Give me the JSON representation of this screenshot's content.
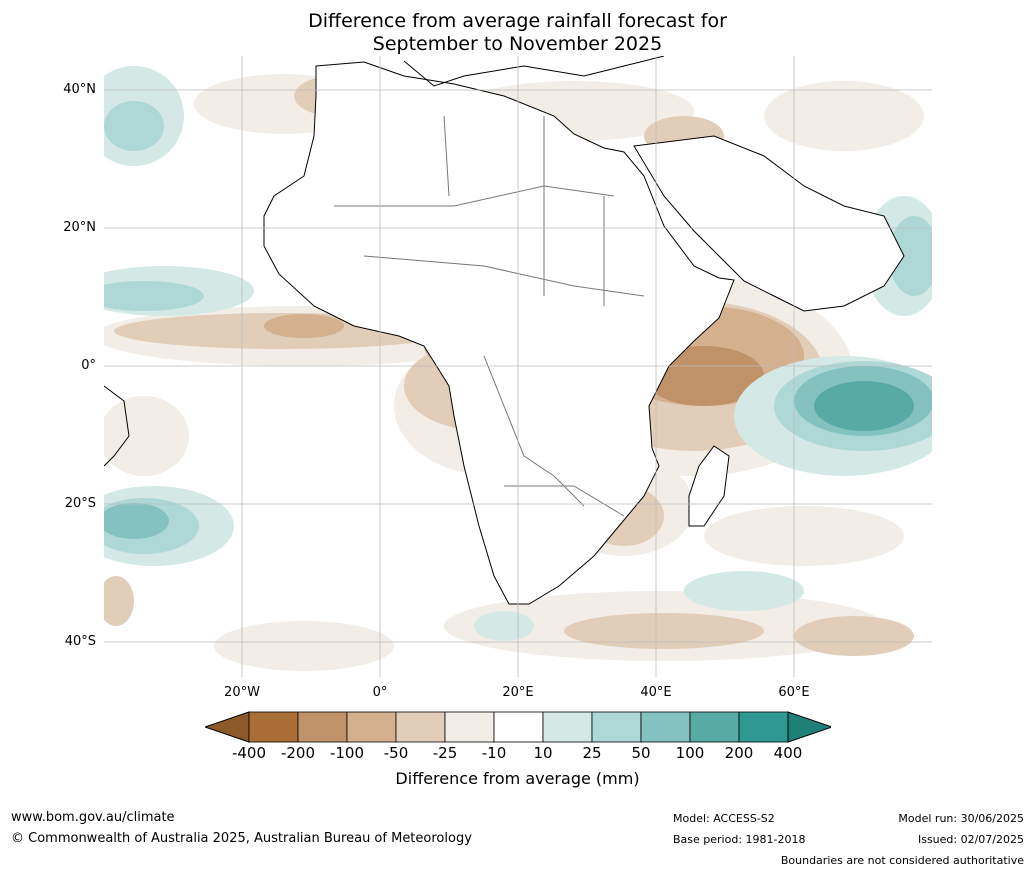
{
  "title": {
    "line1": "Difference from average rainfall forecast for",
    "line2": "September to November 2025"
  },
  "axes": {
    "lat_labels": [
      "40°N",
      "20°N",
      "0°",
      "20°S",
      "40°S"
    ],
    "lon_labels": [
      "20°W",
      "0°",
      "20°E",
      "40°E",
      "60°E"
    ]
  },
  "legend": {
    "title": "Difference from average (mm)",
    "ticks": [
      "-400",
      "-200",
      "-100",
      "-50",
      "-25",
      "-10",
      "10",
      "25",
      "50",
      "100",
      "200",
      "400"
    ],
    "colors": [
      "#a86e36",
      "#c0926a",
      "#d4b08f",
      "#e2cdb9",
      "#f2ede6",
      "#ffffff",
      "#d4e8e6",
      "#aed8d5",
      "#83c2bf",
      "#58aaa7",
      "#2f9892"
    ],
    "under_color": "#8c5a28",
    "over_color": "#1f7f79"
  },
  "footer": {
    "url": "www.bom.gov.au/climate",
    "copyright": "© Commonwealth of Australia 2025, Australian Bureau of Meteorology",
    "model": "Model: ACCESS-S2",
    "base_period": "Base period: 1981-2018",
    "model_run": "Model run: 30/06/2025",
    "issued": "Issued: 02/07/2025",
    "disclaimer": "Boundaries are not considered authoritative"
  }
}
